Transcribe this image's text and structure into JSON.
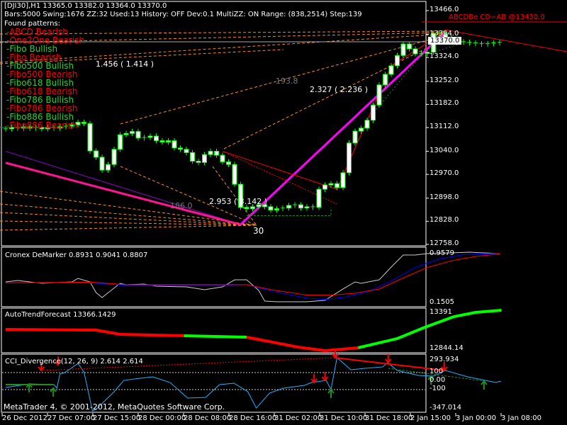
{
  "header": {
    "line1": "[DJI30],H1  13365.0 13382.0 13364.0 13370.0",
    "line2": "Bars:5000  Swing:1676  ZZ:32  Used:13  History: OFF Dev:0.1  MultiZZ: ON  Range: (838,2514)  Step:139",
    "found_label": "Found patterns:"
  },
  "patterns": [
    {
      "label": "-ABCD Bearish",
      "color": "#ff0000"
    },
    {
      "label": "-One2One Bearish",
      "color": "#ff0000"
    },
    {
      "label": "-Fibo Bullish",
      "color": "#32cd32"
    },
    {
      "label": "-Fibo Bearish",
      "color": "#ff0000"
    },
    {
      "label": "-Fibo500 Bullish",
      "color": "#32cd32"
    },
    {
      "label": "-Fibo500 Bearish",
      "color": "#ff0000"
    },
    {
      "label": "-Fibo618 Bullish",
      "color": "#32cd32"
    },
    {
      "label": "-Fibo618 Bearish",
      "color": "#ff0000"
    },
    {
      "label": "-Fibo786 Bullish",
      "color": "#32cd32"
    },
    {
      "label": "-Fibo786 Bearish",
      "color": "#ff0000"
    },
    {
      "label": "-Fibo886 Bullish",
      "color": "#32cd32"
    },
    {
      "label": "-Fibo886 Bearish",
      "color": "#ff0000"
    }
  ],
  "annotations": {
    "ratio1": "1.456 ( 1.414 )",
    "ratio2": "2.327 ( 2.236 )",
    "ratio3": "2.953 ( 3.142 )",
    "level1": "193.8",
    "level2": "186.0",
    "point_label": "30",
    "abcd_target": "ABCDBe CD=AB   @13430.0"
  },
  "price_axis": {
    "labels": [
      "13466.0",
      "13394.0",
      "13324.0",
      "13252.0",
      "13182.0",
      "13112.0",
      "13040.0",
      "12970.0",
      "12898.0",
      "12828.0",
      "12758.0"
    ],
    "current_price": "13370.0"
  },
  "time_axis": [
    "26 Dec 2012",
    "27 Dec 07:00",
    "27 Dec 15:00",
    "28 Dec 00:00",
    "28 Dec 08:00",
    "28 Dec 16:00",
    "31 Dec 02:00",
    "31 Dec 10:00",
    "31 Dec 18:00",
    "2 Jan 15:00",
    "3 Jan 00:00",
    "3 Jan 08:00"
  ],
  "indicators": {
    "demarker": {
      "title": "Cronex DeMarker 0.8931 0.9041 0.8807",
      "max_label": "0.9579",
      "min_label": "0.1505"
    },
    "autotrend": {
      "title": "AutoTrendForecast 13366.1429",
      "max_label": "13391",
      "min_label": "12844.14"
    },
    "cci": {
      "title": "CCI_Divergence(12, 26, 9) 2.614 2.614",
      "labels": [
        "293.934",
        "100",
        "0.00",
        "-100",
        "-347.014"
      ]
    }
  },
  "footer": {
    "copyright": "MetaTrader 4, © 2001-2012, MetaQuotes Software Corp."
  },
  "colors": {
    "candle_outline": "#00ff00",
    "candle_body": "#ffffff",
    "bearish": "#ff0000",
    "bullish": "#00ff00",
    "trend_pink": "#ff1493",
    "fib_orange": "#ff8c1a",
    "cci_line": "#1eb4ff"
  },
  "chart_data": {
    "type": "candlestick",
    "symbol": "DJI30",
    "timeframe": "H1",
    "ylim": [
      12758,
      13466
    ],
    "closes": [
      13108,
      13112,
      13110,
      13114,
      13110,
      13112,
      13108,
      13112,
      13110,
      13114,
      13116,
      13120,
      13128,
      13124,
      13041,
      13022,
      12983,
      13000,
      13046,
      13090,
      13094,
      13100,
      13080,
      13082,
      13086,
      13072,
      13068,
      13072,
      13050,
      13046,
      13036,
      13010,
      13006,
      13030,
      13040,
      13028,
      13008,
      13000,
      12940,
      12870,
      12866,
      12872,
      12878,
      12872,
      12862,
      12866,
      12868,
      12876,
      12878,
      12868,
      12872,
      12870,
      12925,
      12938,
      12942,
      12930,
      12975,
      13065,
      13101,
      13110,
      13134,
      13180,
      13241,
      13273,
      13299,
      13330,
      13365,
      13350,
      13335,
      13336,
      13340,
      13397,
      13395,
      13385,
      13378,
      13372,
      13370,
      13368,
      13366,
      13364,
      13366,
      13368,
      13370
    ],
    "demarker": {
      "range": [
        0.1505,
        0.9579
      ],
      "white": [
        [
          0,
          0.485
        ],
        [
          2,
          0.508
        ],
        [
          6,
          0.462
        ],
        [
          11,
          0.485
        ],
        [
          12,
          0.542
        ],
        [
          14,
          0.485
        ],
        [
          15,
          0.312
        ],
        [
          16,
          0.231
        ],
        [
          19,
          0.462
        ],
        [
          20,
          0.439
        ],
        [
          23,
          0.45
        ],
        [
          25,
          0.416
        ],
        [
          30,
          0.404
        ],
        [
          33,
          0.358
        ],
        [
          36,
          0.404
        ],
        [
          38,
          0.519
        ],
        [
          40,
          0.519
        ],
        [
          42,
          0.347
        ],
        [
          43,
          0.174
        ],
        [
          45,
          0.162
        ],
        [
          50,
          0.162
        ],
        [
          53,
          0.185
        ],
        [
          56,
          0.37
        ],
        [
          58,
          0.485
        ],
        [
          59,
          0.462
        ],
        [
          62,
          0.519
        ],
        [
          64,
          0.727
        ],
        [
          66,
          0.923
        ],
        [
          68,
          0.923
        ],
        [
          70,
          0.946
        ],
        [
          74,
          0.958
        ],
        [
          77,
          0.969
        ],
        [
          82,
          0.946
        ]
      ],
      "blue": [
        [
          0,
          0.47
        ],
        [
          14,
          0.47
        ],
        [
          20,
          0.43
        ],
        [
          30,
          0.43
        ],
        [
          36,
          0.43
        ],
        [
          40,
          0.44
        ],
        [
          44,
          0.34
        ],
        [
          50,
          0.22
        ],
        [
          53,
          0.2
        ],
        [
          56,
          0.23
        ],
        [
          60,
          0.32
        ],
        [
          64,
          0.5
        ],
        [
          68,
          0.72
        ],
        [
          72,
          0.86
        ],
        [
          76,
          0.93
        ],
        [
          82,
          0.95
        ]
      ],
      "red": [
        [
          0,
          0.47
        ],
        [
          14,
          0.48
        ],
        [
          20,
          0.44
        ],
        [
          40,
          0.44
        ],
        [
          44,
          0.36
        ],
        [
          50,
          0.27
        ],
        [
          54,
          0.27
        ],
        [
          58,
          0.3
        ],
        [
          62,
          0.37
        ],
        [
          66,
          0.55
        ],
        [
          70,
          0.72
        ],
        [
          74,
          0.83
        ],
        [
          78,
          0.9
        ],
        [
          82,
          0.94
        ]
      ]
    },
    "autotrend": {
      "range": [
        12844.14,
        13391
      ],
      "segments": [
        {
          "color": "#ff0000",
          "points": [
            [
              0,
              13139
            ],
            [
              15,
              13128
            ],
            [
              19,
              13063
            ],
            [
              29.6,
              13041
            ]
          ]
        },
        {
          "color": "#00ff00",
          "points": [
            [
              29.6,
              13041
            ],
            [
              40,
              13019
            ]
          ]
        },
        {
          "color": "#ff0000",
          "points": [
            [
              40,
              13019
            ],
            [
              48.5,
              12866
            ],
            [
              53,
              12811
            ],
            [
              58.5,
              12855
            ]
          ]
        },
        {
          "color": "#00ff00",
          "points": [
            [
              58.5,
              12855
            ],
            [
              65,
              12997
            ],
            [
              69.6,
              13172
            ],
            [
              74.4,
              13336
            ],
            [
              78,
              13402
            ],
            [
              82.3,
              13435
            ]
          ]
        }
      ]
    },
    "cci": {
      "range": [
        -347.014,
        293.934
      ],
      "levels": [
        100,
        -100
      ],
      "line": [
        [
          0,
          -75
        ],
        [
          4,
          -33
        ],
        [
          8,
          -42
        ],
        [
          8.5,
          -83
        ],
        [
          9,
          83
        ],
        [
          10,
          108
        ],
        [
          12,
          208
        ],
        [
          13,
          108
        ],
        [
          14.4,
          -350
        ],
        [
          15,
          -333
        ],
        [
          18,
          -125
        ],
        [
          19.6,
          8
        ],
        [
          21.4,
          25
        ],
        [
          24.4,
          50
        ],
        [
          27.3,
          -17
        ],
        [
          30.2,
          -200
        ],
        [
          33.2,
          -192
        ],
        [
          35.5,
          -42
        ],
        [
          37.9,
          -25
        ],
        [
          40.2,
          -125
        ],
        [
          41.6,
          -317
        ],
        [
          43.8,
          -142
        ],
        [
          46.1,
          -83
        ],
        [
          49.6,
          -50
        ],
        [
          50.8,
          -17
        ],
        [
          53.2,
          8
        ],
        [
          54,
          -100
        ],
        [
          55,
          275
        ],
        [
          57.3,
          133
        ],
        [
          59.6,
          150
        ],
        [
          62.6,
          167
        ],
        [
          63.4,
          217
        ],
        [
          65,
          125
        ],
        [
          68.5,
          67
        ],
        [
          71,
          58
        ],
        [
          73,
          125
        ],
        [
          76.7,
          50
        ],
        [
          80.2,
          0
        ],
        [
          81.4,
          -17
        ],
        [
          82.2,
          0
        ]
      ],
      "down_arrows": [
        [
          5.9,
          125
        ],
        [
          8.7,
          190
        ],
        [
          51.2,
          -17
        ],
        [
          53,
          8
        ],
        [
          54.7,
          275
        ],
        [
          63.5,
          217
        ],
        [
          72.8,
          125
        ]
      ],
      "up_arrows": [
        [
          3.9,
          -33
        ],
        [
          7.9,
          -83
        ],
        [
          54,
          -100
        ],
        [
          70.6,
          58
        ],
        [
          79.4,
          0
        ]
      ]
    }
  }
}
